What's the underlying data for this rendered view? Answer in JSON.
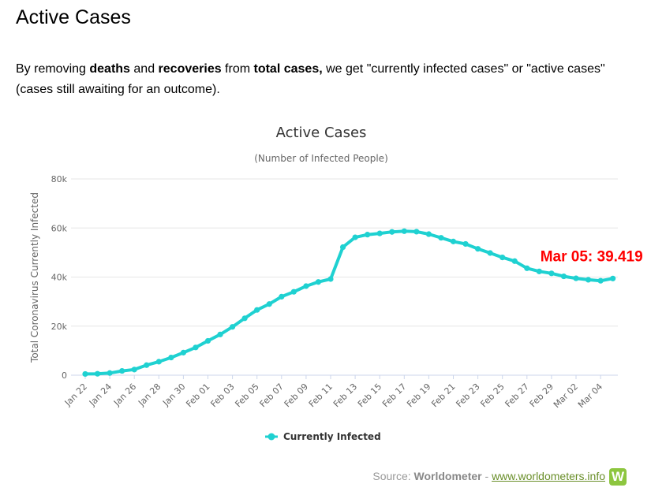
{
  "page": {
    "heading": "Active Cases",
    "intro": {
      "p1": "By removing ",
      "b1": "deaths",
      "p2": " and ",
      "b2": "recoveries",
      "p3": " from ",
      "b3": "total cases,",
      "p4": " we get \"currently infected cases\" or \"active cases\" (cases still awaiting for an outcome)."
    },
    "source": {
      "prefix": "Source: ",
      "name": "Worldometer",
      "sep": " - ",
      "link": "www.worldometers.info",
      "logo_letter": "W"
    }
  },
  "colors": {
    "series": "#1fd1d1",
    "annotation": "#ff0000",
    "grid": "#e6e6e6",
    "axis": "#ccd6eb"
  },
  "chart_data": {
    "type": "line",
    "title": "Active Cases",
    "subtitle": "(Number of Infected People)",
    "ylabel": "Total Coronavirus Currently Infected",
    "xlabel": "",
    "ylim": [
      0,
      80000
    ],
    "yticks": [
      0,
      20000,
      40000,
      60000,
      80000
    ],
    "ytick_labels": [
      "0",
      "20k",
      "40k",
      "60k",
      "80k"
    ],
    "grid": true,
    "legend_position": "bottom-center",
    "annotation": {
      "label": "Mar 05: 39.419",
      "index": 43
    },
    "categories": [
      "Jan 22",
      "Jan 23",
      "Jan 24",
      "Jan 25",
      "Jan 26",
      "Jan 27",
      "Jan 28",
      "Jan 29",
      "Jan 30",
      "Jan 31",
      "Feb 01",
      "Feb 02",
      "Feb 03",
      "Feb 04",
      "Feb 05",
      "Feb 06",
      "Feb 07",
      "Feb 08",
      "Feb 09",
      "Feb 10",
      "Feb 11",
      "Feb 12",
      "Feb 13",
      "Feb 14",
      "Feb 15",
      "Feb 16",
      "Feb 17",
      "Feb 18",
      "Feb 19",
      "Feb 20",
      "Feb 21",
      "Feb 22",
      "Feb 23",
      "Feb 24",
      "Feb 25",
      "Feb 26",
      "Feb 27",
      "Feb 28",
      "Feb 29",
      "Mar 01",
      "Mar 02",
      "Mar 03",
      "Mar 04",
      "Mar 05"
    ],
    "xtick_labels": [
      "Jan 22",
      "Jan 24",
      "Jan 26",
      "Jan 28",
      "Jan 30",
      "Feb 01",
      "Feb 03",
      "Feb 05",
      "Feb 07",
      "Feb 09",
      "Feb 11",
      "Feb 13",
      "Feb 15",
      "Feb 17",
      "Feb 19",
      "Feb 21",
      "Feb 23",
      "Feb 25",
      "Feb 27",
      "Feb 29",
      "Mar 02",
      "Mar 04"
    ],
    "series": [
      {
        "name": "Currently Infected",
        "values": [
          510,
          580,
          880,
          1750,
          2300,
          4100,
          5500,
          7200,
          9200,
          11300,
          14000,
          16600,
          19700,
          23200,
          26600,
          29000,
          32000,
          34000,
          36300,
          38000,
          39200,
          52200,
          56200,
          57300,
          57800,
          58400,
          58700,
          58500,
          57500,
          56000,
          54500,
          53500,
          51500,
          49800,
          48000,
          46500,
          43600,
          42300,
          41500,
          40300,
          39500,
          38900,
          38500,
          39419
        ]
      }
    ]
  }
}
